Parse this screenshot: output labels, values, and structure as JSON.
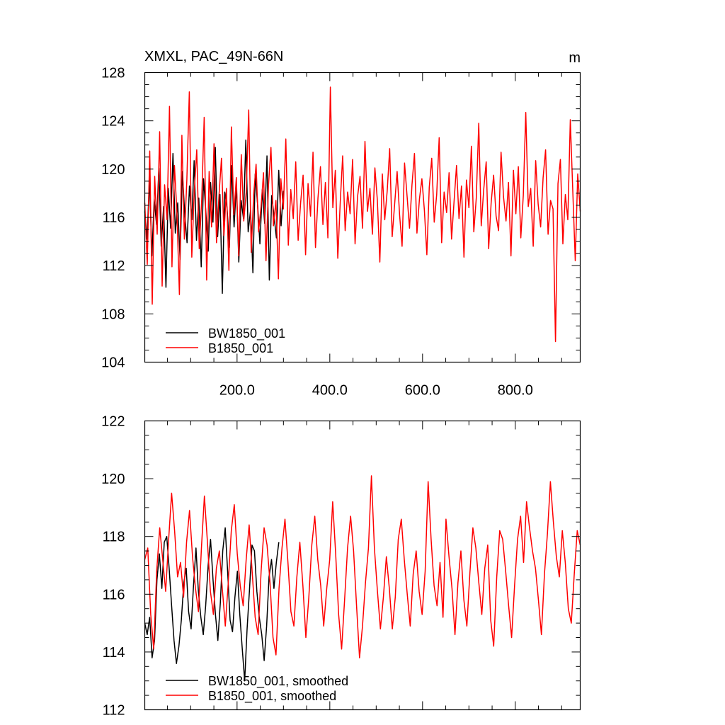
{
  "colors": {
    "series_a": "#000000",
    "series_b": "#ff0000",
    "axes": "#000000"
  },
  "chart_data": [
    {
      "type": "line",
      "title": "XMXL, PAC_49N-66N",
      "units": "m",
      "xlim": [
        1,
        940
      ],
      "ylim": [
        104,
        128
      ],
      "x_ticks": [
        200,
        400,
        600,
        800
      ],
      "x_tick_labels": [
        "200.0",
        "400.0",
        "600.0",
        "800.0"
      ],
      "y_ticks": [
        104,
        108,
        112,
        116,
        120,
        124,
        128
      ],
      "y_tick_labels": [
        "104",
        "108",
        "112",
        "116",
        "120",
        "124",
        "128"
      ],
      "grid": false,
      "legend_position": "bottom-left",
      "series": [
        {
          "name": "BW1850_001",
          "color": "#000000",
          "x_start": 1,
          "x_end": 300,
          "values": [
            116.5,
            114.2,
            119.3,
            112.8,
            117.5,
            115.4,
            120.1,
            113.6,
            116.9,
            110.2,
            118.4,
            115.1,
            121.3,
            114.7,
            117.2,
            112.5,
            119.8,
            116.3,
            113.9,
            118.6,
            115.8,
            120.7,
            114.1,
            117.6,
            111.9,
            119.2,
            116.4,
            113.2,
            118.9,
            115.6,
            121.8,
            114.4,
            117.9,
            109.7,
            118.1,
            116.8,
            113.5,
            120.3,
            115.2,
            118.7,
            112.3,
            117.4,
            115.9,
            122.4,
            114.8,
            116.6,
            111.4,
            119.6,
            117.1,
            113.8,
            118.3,
            115.5,
            121.1,
            110.8,
            117.8,
            116.1,
            114.3,
            119.9,
            115.3,
            118.2
          ]
        },
        {
          "name": "B1850_001",
          "color": "#ff0000",
          "x_start": 1,
          "x_end": 940,
          "values": [
            117.2,
            112.1,
            121.5,
            108.8,
            119.4,
            114.6,
            123.1,
            110.3,
            118.7,
            115.8,
            125.2,
            111.9,
            120.3,
            116.4,
            109.6,
            122.8,
            114.2,
            119.1,
            126.4,
            112.7,
            118.2,
            121.6,
            113.4,
            117.5,
            124.3,
            110.8,
            119.8,
            115.2,
            122.1,
            113.9,
            117.8,
            120.9,
            114.5,
            118.4,
            111.6,
            123.5,
            116.2,
            119.3,
            112.8,
            121.2,
            115.7,
            118.1,
            124.9,
            113.1,
            117.9,
            120.4,
            114.8,
            116.9,
            119.7,
            112.4,
            118.6,
            121.8,
            115.3,
            117.4,
            110.9,
            119.2,
            116.7,
            122.5,
            113.7,
            118.3,
            115.9,
            120.6,
            114.1,
            117.2,
            119.5,
            112.9,
            118.8,
            116.1,
            121.4,
            113.5,
            117.6,
            120.2,
            115.4,
            118.9,
            114.3,
            126.8,
            116.8,
            119.9,
            112.6,
            117.3,
            121.1,
            114.9,
            118.1,
            116.3,
            120.8,
            113.8,
            117.7,
            119.4,
            115.1,
            122.3,
            116.5,
            118.4,
            114.6,
            120.1,
            117.4,
            112.3,
            119.6,
            115.8,
            118.2,
            121.7,
            114.4,
            117.1,
            119.8,
            116.2,
            113.6,
            120.5,
            117.8,
            115.1,
            118.7,
            121.3,
            114.7,
            117.5,
            119.2,
            116.6,
            112.9,
            118.5,
            120.9,
            115.6,
            117.9,
            122.6,
            113.9,
            118.1,
            116.4,
            119.7,
            114.2,
            117.3,
            120.3,
            115.9,
            118.6,
            112.7,
            119.1,
            116.8,
            121.9,
            114.8,
            117.6,
            123.8,
            115.3,
            118.3,
            120.6,
            113.4,
            117.2,
            119.5,
            116.1,
            114.9,
            121.4,
            117.7,
            115.7,
            118.9,
            112.8,
            119.9,
            116.3,
            120.2,
            114.3,
            117.8,
            124.7,
            116.9,
            118.4,
            113.6,
            120.7,
            117.1,
            115.2,
            119.3,
            121.6,
            114.6,
            117.4,
            116.7,
            105.7,
            118.8,
            120.8,
            113.8,
            117.9,
            115.8,
            124.1,
            118.2,
            112.4,
            119.6,
            116.5
          ]
        }
      ],
      "legend": [
        "BW1850_001",
        "B1850_001"
      ]
    },
    {
      "type": "line",
      "xlim": [
        1,
        940
      ],
      "ylim": [
        112,
        122
      ],
      "y_ticks": [
        112,
        114,
        116,
        118,
        120,
        122
      ],
      "y_tick_labels": [
        "112",
        "114",
        "116",
        "118",
        "120",
        "122"
      ],
      "grid": false,
      "legend_position": "bottom-left",
      "series": [
        {
          "name": "BW1850_001, smoothed",
          "color": "#000000",
          "x_start": 1,
          "x_end": 290,
          "values": [
            115.0,
            114.6,
            115.2,
            113.8,
            114.4,
            116.5,
            117.4,
            116.2,
            117.8,
            118.0,
            116.9,
            115.6,
            114.4,
            113.6,
            114.2,
            115.1,
            116.4,
            116.9,
            115.4,
            114.8,
            116.3,
            117.6,
            116.1,
            115.2,
            114.6,
            115.6,
            117.0,
            117.9,
            116.5,
            115.3,
            114.4,
            115.7,
            117.5,
            118.3,
            116.8,
            115.1,
            114.7,
            115.9,
            116.8,
            115.3,
            114.1,
            113.0,
            114.8,
            116.2,
            117.7,
            117.5,
            116.1,
            115.2,
            114.6,
            113.7,
            114.9,
            116.6,
            117.2,
            116.2,
            117.1,
            117.8
          ]
        },
        {
          "name": "B1850_001, smoothed",
          "color": "#ff0000",
          "x_start": 1,
          "x_end": 940,
          "values": [
            117.2,
            117.6,
            115.3,
            114.1,
            116.8,
            118.3,
            117.2,
            116.1,
            117.9,
            119.5,
            118.2,
            116.6,
            117.1,
            115.9,
            117.8,
            118.9,
            117.3,
            116.2,
            115.4,
            117.6,
            119.4,
            117.8,
            116.1,
            115.3,
            116.9,
            117.5,
            116.2,
            114.9,
            116.4,
            118.2,
            119.1,
            117.4,
            116.3,
            115.6,
            117.2,
            118.4,
            116.8,
            115.2,
            114.6,
            116.8,
            118.3,
            117.7,
            116.4,
            114.5,
            113.9,
            116.2,
            117.6,
            118.6,
            117.1,
            115.4,
            114.9,
            116.6,
            117.8,
            116.3,
            114.5,
            115.9,
            117.7,
            118.7,
            117.2,
            116.3,
            114.9,
            116.2,
            117.2,
            119.2,
            117.4,
            115.3,
            114.1,
            115.8,
            117.6,
            118.7,
            117.5,
            115.6,
            113.8,
            114.9,
            116.4,
            117.6,
            120.1,
            117.6,
            116.1,
            114.8,
            115.9,
            117.3,
            116.2,
            114.8,
            115.9,
            117.9,
            118.6,
            117.2,
            116.0,
            114.9,
            116.7,
            117.5,
            116.1,
            115.3,
            116.8,
            119.9,
            117.9,
            116.3,
            115.6,
            117.1,
            115.2,
            118.6,
            117.3,
            116.2,
            114.6,
            116.4,
            117.5,
            115.8,
            114.9,
            116.7,
            118.3,
            117.6,
            116.4,
            115.3,
            116.9,
            117.7,
            115.1,
            114.2,
            116.6,
            118.2,
            117.9,
            116.8,
            115.6,
            114.5,
            116.3,
            117.9,
            118.7,
            117.1,
            119.2,
            118.3,
            117.5,
            116.9,
            115.8,
            114.6,
            116.7,
            118.1,
            119.9,
            118.5,
            117.3,
            116.6,
            118.2,
            117.1,
            115.5,
            115.0,
            116.7,
            118.2,
            117.7
          ]
        }
      ],
      "legend": [
        "BW1850_001, smoothed",
        "B1850_001, smoothed"
      ]
    }
  ]
}
